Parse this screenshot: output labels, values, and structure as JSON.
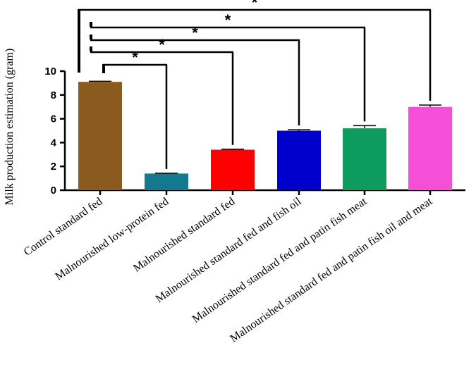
{
  "chart_data": {
    "type": "bar",
    "title": "",
    "xlabel": "",
    "ylabel": "Milk production estimation (gram)",
    "ylim": [
      0,
      10
    ],
    "yticks": [
      "0",
      "2",
      "4",
      "6",
      "8",
      "10"
    ],
    "grid": false,
    "categories": [
      "Control standard fed",
      "Malnourished low-protein fed",
      "Malnourished standard fed",
      "Malnourished standard fed and fish oil",
      "Malnourished standard fed and patin fish meat",
      "Malnourished standard fed and patin fish oil and meat"
    ],
    "values": [
      9.1,
      1.4,
      3.4,
      5.0,
      5.2,
      7.0
    ],
    "error": [
      0.05,
      0.03,
      0.05,
      0.08,
      0.22,
      0.15
    ],
    "colors": [
      "#8B5A1E",
      "#13798F",
      "#FF0000",
      "#0000CC",
      "#0E9C5E",
      "#F44FD6"
    ],
    "significance": [
      {
        "from": "Control standard fed",
        "to": "Malnourished low-protein fed",
        "label": "*"
      },
      {
        "from": "Control standard fed",
        "to": "Malnourished standard fed",
        "label": "*"
      },
      {
        "from": "Control standard fed",
        "to": "Malnourished standard fed and fish oil",
        "label": "*"
      },
      {
        "from": "Control standard fed",
        "to": "Malnourished standard fed and patin fish meat",
        "label": "*"
      },
      {
        "from": "Control standard fed",
        "to": "Malnourished standard fed and patin fish oil and meat",
        "label": "*"
      }
    ]
  }
}
